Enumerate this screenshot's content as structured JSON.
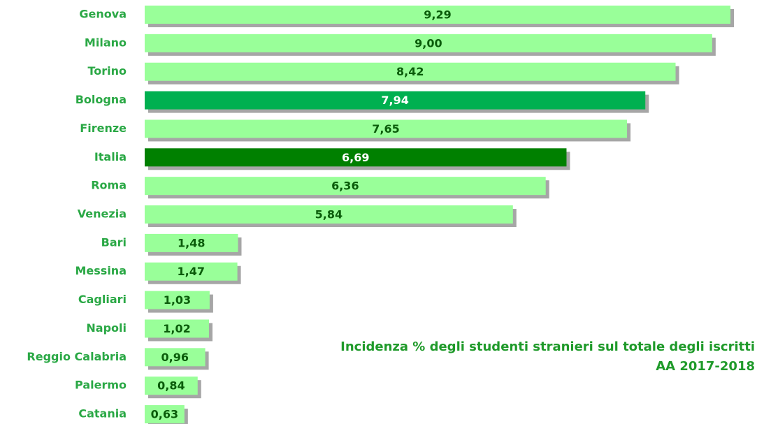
{
  "chart_data": {
    "type": "hbar",
    "title": "Incidenza % degli studenti stranieri sul totale degli iscritti",
    "subtitle": "AA 2017-2018",
    "categories": [
      "Genova",
      "Milano",
      "Torino",
      "Bologna",
      "Firenze",
      "Italia",
      "Roma",
      "Venezia",
      "Bari",
      "Messina",
      "Cagliari",
      "Napoli",
      "Reggio Calabria",
      "Palermo",
      "Catania"
    ],
    "values": [
      9.29,
      9.0,
      8.42,
      7.94,
      7.65,
      6.69,
      6.36,
      5.84,
      1.48,
      1.47,
      1.03,
      1.02,
      0.96,
      0.84,
      0.63
    ],
    "value_labels": [
      "9,29",
      "9,00",
      "8,42",
      "7,94",
      "7,65",
      "6,69",
      "6,36",
      "5,84",
      "1,48",
      "1,47",
      "1,03",
      "1,02",
      "0,96",
      "0,84",
      "0,63"
    ],
    "colors": [
      "#99ff99",
      "#99ff99",
      "#99ff99",
      "#00b050",
      "#99ff99",
      "#008000",
      "#99ff99",
      "#99ff99",
      "#99ff99",
      "#99ff99",
      "#99ff99",
      "#99ff99",
      "#99ff99",
      "#99ff99",
      "#99ff99"
    ]
  }
}
